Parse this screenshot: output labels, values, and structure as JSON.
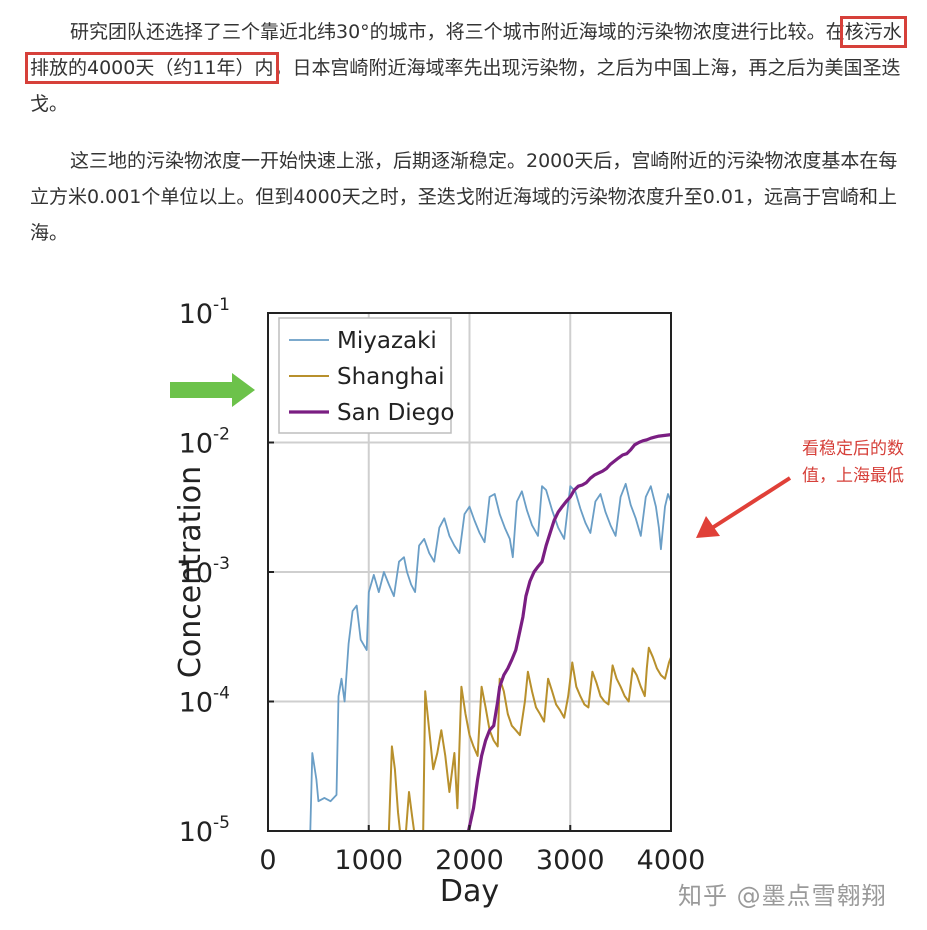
{
  "article": {
    "p1_a": "研究团队还选择了三个靠近北纬30°的城市，将三个城市附近海域的污染物浓度进行比较。在",
    "p1_highlight": "核污水排放的4000天（约11年）内",
    "p1_b": "，日本宫崎附近海域率先出现污染物，之后为中国上海，再之后为美国圣迭戈。",
    "p2": "这三地的污染物浓度一开始快速上涨，后期逐渐稳定。2000天后，宫崎附近的污染物浓度基本在每立方米0.001个单位以上。但到4000天之时，圣迭戈附近海域的污染物浓度升至0.01，远高于宫崎和上海。"
  },
  "annotation": {
    "text": "看稳定后的数值，上海最低",
    "color": "#d6403a"
  },
  "watermark": "知乎 @墨点雪翱翔",
  "colors": {
    "miyazaki": "#6a9ec6",
    "shanghai": "#b8902c",
    "san_diego": "#7a1e82",
    "arrow_green": "#6cc24a",
    "annotation_arrow": "#e04038"
  },
  "chart_data": {
    "type": "line",
    "xlabel": "Day",
    "ylabel": "Concentration",
    "xlim": [
      0,
      4000
    ],
    "ylim": [
      1e-05,
      0.1
    ],
    "yscale": "log",
    "grid": true,
    "legend": "top-left",
    "xticks": [
      "0",
      "1000",
      "2000",
      "3000",
      "4000"
    ],
    "yticks": [
      {
        "base": "10",
        "exp": "-5",
        "value": 1e-05
      },
      {
        "base": "10",
        "exp": "-4",
        "value": 0.0001
      },
      {
        "base": "10",
        "exp": "-3",
        "value": 0.001
      },
      {
        "base": "10",
        "exp": "-2",
        "value": 0.01
      },
      {
        "base": "10",
        "exp": "-1",
        "value": 0.1
      }
    ],
    "series": [
      {
        "name": "Miyazaki",
        "color": "#6a9ec6",
        "points": [
          [
            420,
            1e-05
          ],
          [
            440,
            4e-05
          ],
          [
            480,
            2.5e-05
          ],
          [
            500,
            1.7e-05
          ],
          [
            560,
            1.8e-05
          ],
          [
            620,
            1.7e-05
          ],
          [
            680,
            1.9e-05
          ],
          [
            700,
            0.00011
          ],
          [
            730,
            0.00015
          ],
          [
            760,
            0.0001
          ],
          [
            800,
            0.00028
          ],
          [
            840,
            0.0005
          ],
          [
            880,
            0.00055
          ],
          [
            920,
            0.0003
          ],
          [
            980,
            0.00025
          ],
          [
            1000,
            0.0007
          ],
          [
            1050,
            0.00095
          ],
          [
            1100,
            0.0007
          ],
          [
            1150,
            0.001
          ],
          [
            1200,
            0.0008
          ],
          [
            1250,
            0.00065
          ],
          [
            1300,
            0.0012
          ],
          [
            1350,
            0.0013
          ],
          [
            1380,
            0.001
          ],
          [
            1420,
            0.0008
          ],
          [
            1460,
            0.0007
          ],
          [
            1500,
            0.0016
          ],
          [
            1550,
            0.0018
          ],
          [
            1600,
            0.0014
          ],
          [
            1650,
            0.0012
          ],
          [
            1700,
            0.0022
          ],
          [
            1750,
            0.0026
          ],
          [
            1800,
            0.0019
          ],
          [
            1850,
            0.0016
          ],
          [
            1900,
            0.0014
          ],
          [
            1950,
            0.0028
          ],
          [
            2000,
            0.0032
          ],
          [
            2050,
            0.0025
          ],
          [
            2100,
            0.002
          ],
          [
            2150,
            0.0017
          ],
          [
            2200,
            0.0038
          ],
          [
            2250,
            0.004
          ],
          [
            2300,
            0.0028
          ],
          [
            2350,
            0.0022
          ],
          [
            2400,
            0.0018
          ],
          [
            2430,
            0.0013
          ],
          [
            2470,
            0.0035
          ],
          [
            2520,
            0.0042
          ],
          [
            2570,
            0.003
          ],
          [
            2620,
            0.0023
          ],
          [
            2680,
            0.0019
          ],
          [
            2720,
            0.0046
          ],
          [
            2760,
            0.0043
          ],
          [
            2820,
            0.003
          ],
          [
            2880,
            0.0022
          ],
          [
            2940,
            0.0018
          ],
          [
            3000,
            0.0046
          ],
          [
            3050,
            0.0042
          ],
          [
            3100,
            0.0031
          ],
          [
            3150,
            0.0024
          ],
          [
            3200,
            0.002
          ],
          [
            3250,
            0.0035
          ],
          [
            3300,
            0.004
          ],
          [
            3350,
            0.0029
          ],
          [
            3400,
            0.0023
          ],
          [
            3450,
            0.0019
          ],
          [
            3500,
            0.0038
          ],
          [
            3550,
            0.0048
          ],
          [
            3600,
            0.0033
          ],
          [
            3650,
            0.0026
          ],
          [
            3700,
            0.0019
          ],
          [
            3750,
            0.0038
          ],
          [
            3800,
            0.0046
          ],
          [
            3850,
            0.0032
          ],
          [
            3880,
            0.0022
          ],
          [
            3900,
            0.0015
          ],
          [
            3940,
            0.0032
          ],
          [
            3970,
            0.004
          ],
          [
            4000,
            0.0035
          ]
        ]
      },
      {
        "name": "Shanghai",
        "color": "#b8902c",
        "points": [
          [
            1200,
            1e-05
          ],
          [
            1230,
            4.5e-05
          ],
          [
            1260,
            3e-05
          ],
          [
            1290,
            1.4e-05
          ],
          [
            1310,
            1e-05
          ],
          [
            1370,
            1e-05
          ],
          [
            1400,
            2e-05
          ],
          [
            1430,
            1.3e-05
          ],
          [
            1450,
            1e-05
          ],
          [
            1540,
            1e-05
          ],
          [
            1560,
            0.00012
          ],
          [
            1600,
            6e-05
          ],
          [
            1640,
            3e-05
          ],
          [
            1680,
            4e-05
          ],
          [
            1720,
            6e-05
          ],
          [
            1760,
            3.8e-05
          ],
          [
            1800,
            2e-05
          ],
          [
            1850,
            4e-05
          ],
          [
            1880,
            1.5e-05
          ],
          [
            1920,
            0.00013
          ],
          [
            1960,
            8e-05
          ],
          [
            2000,
            5.5e-05
          ],
          [
            2040,
            4.5e-05
          ],
          [
            2080,
            3.8e-05
          ],
          [
            2120,
            0.00013
          ],
          [
            2160,
            9e-05
          ],
          [
            2200,
            6e-05
          ],
          [
            2240,
            5e-05
          ],
          [
            2280,
            4.5e-05
          ],
          [
            2300,
            0.00015
          ],
          [
            2340,
            0.00012
          ],
          [
            2380,
            8e-05
          ],
          [
            2420,
            6.5e-05
          ],
          [
            2460,
            6e-05
          ],
          [
            2500,
            5.5e-05
          ],
          [
            2550,
            0.0001
          ],
          [
            2580,
            0.00017
          ],
          [
            2620,
            0.00012
          ],
          [
            2660,
            9e-05
          ],
          [
            2700,
            8e-05
          ],
          [
            2740,
            7e-05
          ],
          [
            2780,
            0.00015
          ],
          [
            2820,
            0.00012
          ],
          [
            2860,
            9.5e-05
          ],
          [
            2900,
            8.5e-05
          ],
          [
            2940,
            7.5e-05
          ],
          [
            2980,
            0.00011
          ],
          [
            3020,
            0.0002
          ],
          [
            3060,
            0.00013
          ],
          [
            3100,
            0.00011
          ],
          [
            3140,
            9.5e-05
          ],
          [
            3180,
            9e-05
          ],
          [
            3220,
            0.00017
          ],
          [
            3260,
            0.00014
          ],
          [
            3300,
            0.00011
          ],
          [
            3340,
            0.0001
          ],
          [
            3380,
            9.5e-05
          ],
          [
            3420,
            0.00019
          ],
          [
            3460,
            0.00015
          ],
          [
            3500,
            0.00013
          ],
          [
            3540,
            0.00011
          ],
          [
            3580,
            0.0001
          ],
          [
            3620,
            0.00018
          ],
          [
            3660,
            0.00016
          ],
          [
            3700,
            0.00013
          ],
          [
            3740,
            0.00011
          ],
          [
            3760,
            0.00018
          ],
          [
            3780,
            0.00026
          ],
          [
            3820,
            0.00022
          ],
          [
            3860,
            0.00018
          ],
          [
            3900,
            0.00016
          ],
          [
            3940,
            0.00015
          ],
          [
            3980,
            0.0002
          ],
          [
            4000,
            0.00022
          ]
        ]
      },
      {
        "name": "San Diego",
        "color": "#7a1e82",
        "points": [
          [
            1990,
            1e-05
          ],
          [
            2040,
            1.5e-05
          ],
          [
            2080,
            2.5e-05
          ],
          [
            2120,
            3.8e-05
          ],
          [
            2160,
            5e-05
          ],
          [
            2200,
            6e-05
          ],
          [
            2240,
            6.5e-05
          ],
          [
            2280,
            0.0001
          ],
          [
            2300,
            0.00013
          ],
          [
            2340,
            0.00016
          ],
          [
            2380,
            0.00018
          ],
          [
            2420,
            0.00021
          ],
          [
            2460,
            0.00025
          ],
          [
            2500,
            0.00035
          ],
          [
            2530,
            0.00045
          ],
          [
            2560,
            0.00065
          ],
          [
            2600,
            0.00085
          ],
          [
            2640,
            0.001
          ],
          [
            2680,
            0.0011
          ],
          [
            2720,
            0.0012
          ],
          [
            2760,
            0.0016
          ],
          [
            2800,
            0.002
          ],
          [
            2840,
            0.0025
          ],
          [
            2880,
            0.0029
          ],
          [
            2920,
            0.0032
          ],
          [
            2960,
            0.0035
          ],
          [
            3000,
            0.0038
          ],
          [
            3040,
            0.0043
          ],
          [
            3080,
            0.0046
          ],
          [
            3120,
            0.0047
          ],
          [
            3160,
            0.0049
          ],
          [
            3200,
            0.0053
          ],
          [
            3240,
            0.0056
          ],
          [
            3280,
            0.0058
          ],
          [
            3320,
            0.006
          ],
          [
            3360,
            0.0063
          ],
          [
            3400,
            0.0068
          ],
          [
            3440,
            0.0072
          ],
          [
            3480,
            0.0076
          ],
          [
            3520,
            0.008
          ],
          [
            3560,
            0.0082
          ],
          [
            3600,
            0.0088
          ],
          [
            3640,
            0.0096
          ],
          [
            3680,
            0.01
          ],
          [
            3720,
            0.0103
          ],
          [
            3760,
            0.0105
          ],
          [
            3800,
            0.0108
          ],
          [
            3840,
            0.011
          ],
          [
            3880,
            0.0112
          ],
          [
            3920,
            0.0113
          ],
          [
            3960,
            0.0114
          ],
          [
            4000,
            0.0115
          ]
        ]
      }
    ]
  }
}
